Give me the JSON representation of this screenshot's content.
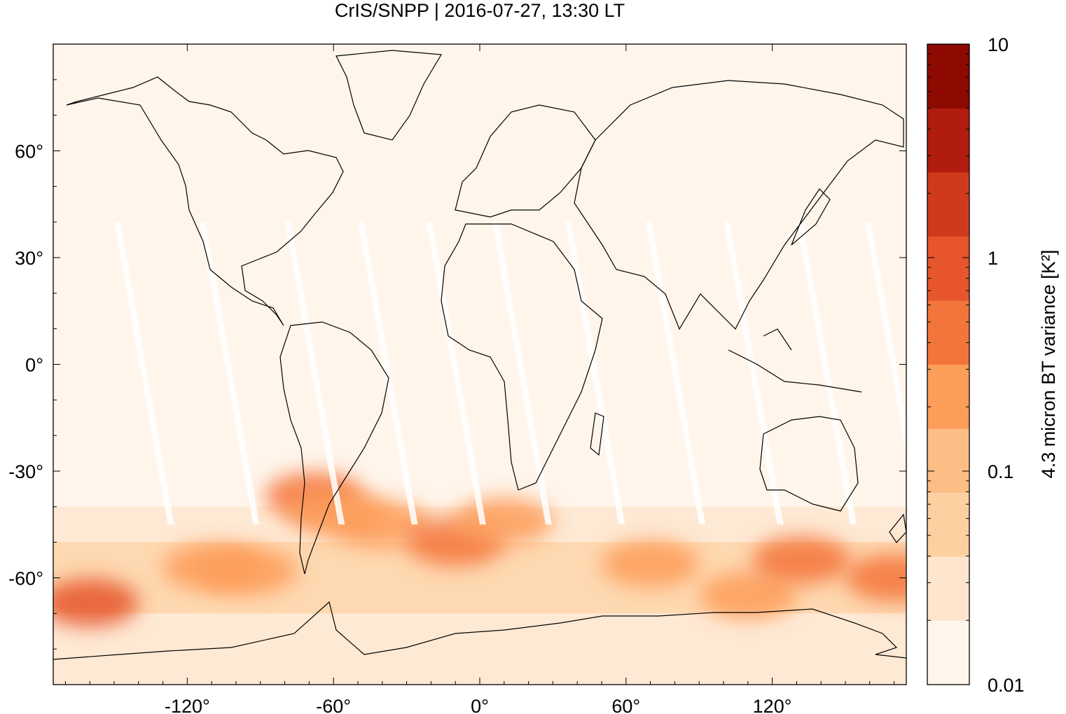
{
  "title": "CrIS/SNPP | 2016-07-27, 13:30 LT",
  "map": {
    "lon_range": [
      -175,
      175
    ],
    "lat_range": [
      -90,
      90
    ],
    "x_ticks": [
      {
        "value": -120,
        "label": "-120°"
      },
      {
        "value": -60,
        "label": "-60°"
      },
      {
        "value": 0,
        "label": "0°"
      },
      {
        "value": 60,
        "label": "60°"
      },
      {
        "value": 120,
        "label": "120°"
      }
    ],
    "y_ticks": [
      {
        "value": 60,
        "label": "60°"
      },
      {
        "value": 30,
        "label": "30°"
      },
      {
        "value": 0,
        "label": "0°"
      },
      {
        "value": -30,
        "label": "-30°"
      },
      {
        "value": -60,
        "label": "-60°"
      }
    ],
    "background_color": "#fff5eb",
    "coastline_color": "#000000",
    "orbit_gap_color": "#ffffff",
    "hotspots": [
      {
        "lon": -160,
        "lat": -67,
        "level": 6
      },
      {
        "lon": -110,
        "lat": -57,
        "level": 4
      },
      {
        "lon": -95,
        "lat": -58,
        "level": 4
      },
      {
        "lon": -68,
        "lat": -37,
        "level": 5
      },
      {
        "lon": -58,
        "lat": -42,
        "level": 4
      },
      {
        "lon": -40,
        "lat": -45,
        "level": 4
      },
      {
        "lon": -10,
        "lat": -50,
        "level": 5
      },
      {
        "lon": 10,
        "lat": -44,
        "level": 4
      },
      {
        "lon": 70,
        "lat": -56,
        "level": 4
      },
      {
        "lon": 110,
        "lat": -65,
        "level": 4
      },
      {
        "lon": 132,
        "lat": -55,
        "level": 5
      },
      {
        "lon": 170,
        "lat": -60,
        "level": 5
      }
    ]
  },
  "colorbar": {
    "label": "4.3 micron BT variance [K²]",
    "scale": "log",
    "range": [
      0.01,
      10
    ],
    "tick_labels": [
      {
        "value": 10,
        "label": "10"
      },
      {
        "value": 1,
        "label": "1"
      },
      {
        "value": 0.1,
        "label": "0.1"
      },
      {
        "value": 0.01,
        "label": "0.01"
      }
    ],
    "colors": [
      "#fff5eb",
      "#fee6ce",
      "#fdd0a2",
      "#fdbe85",
      "#fd9d5a",
      "#f4753b",
      "#e6552c",
      "#d03a1c",
      "#b01c0e",
      "#8c0a00"
    ]
  }
}
